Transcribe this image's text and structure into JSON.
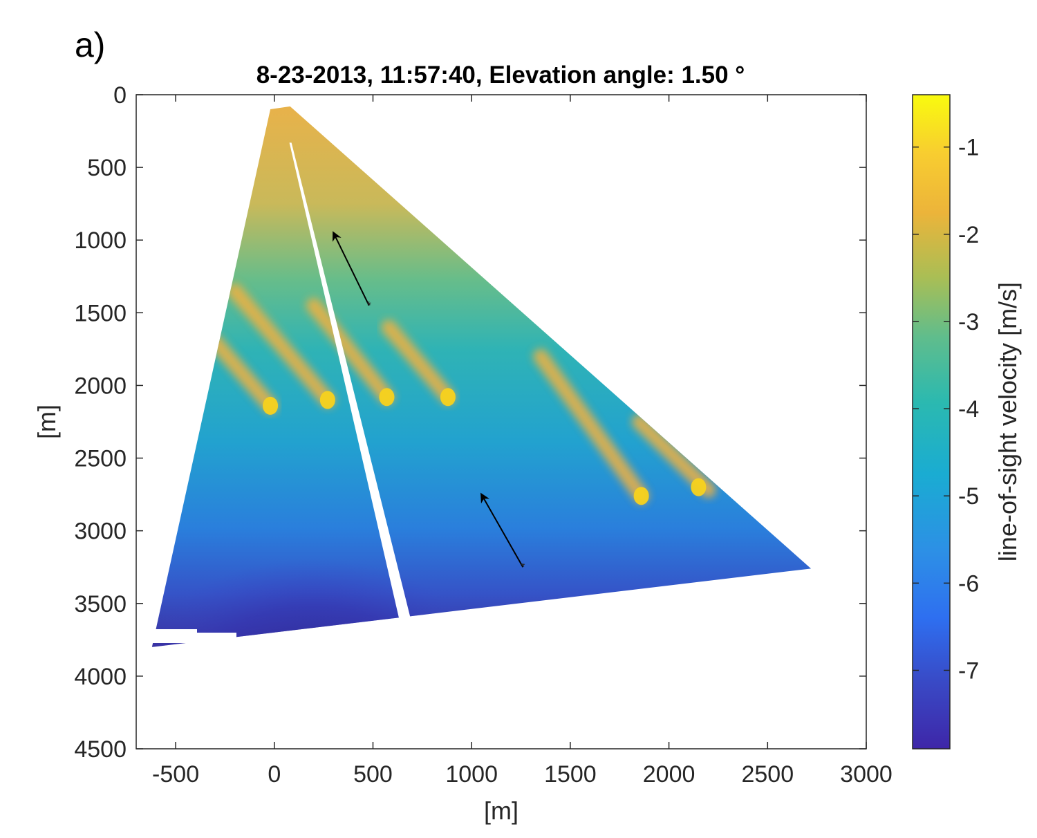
{
  "panel_label": "a)",
  "chart_data": {
    "type": "heatmap",
    "title": "8-23-2013, 11:57:40, Elevation angle: 1.50 °",
    "xlabel": "[m]",
    "ylabel": "[m]",
    "xlim": [
      -700,
      3000
    ],
    "ylim": [
      0,
      4500
    ],
    "y_reversed": true,
    "xticks": [
      -500,
      0,
      500,
      1000,
      1500,
      2000,
      2500,
      3000
    ],
    "xtick_labels": [
      "-500",
      "0",
      "500",
      "1000",
      "1500",
      "2000",
      "2500",
      "3000"
    ],
    "yticks": [
      0,
      500,
      1000,
      1500,
      2000,
      2500,
      3000,
      3500,
      4000,
      4500
    ],
    "ytick_labels": [
      "0",
      "500",
      "1000",
      "1500",
      "2000",
      "2500",
      "3000",
      "3500",
      "4000",
      "4500"
    ],
    "colorbar": {
      "label": "line-of-sight velocity [m/s]",
      "range": [
        -7.9,
        -0.4
      ],
      "ticks": [
        -1,
        -2,
        -3,
        -4,
        -5,
        -6,
        -7
      ],
      "tick_labels": [
        "-1",
        "-2",
        "-3",
        "-4",
        "-5",
        "-6",
        "-7"
      ],
      "colormap": [
        "#3e26a8",
        "#2e87f7",
        "#18b1c8",
        "#3bbc97",
        "#a8be52",
        "#f3b33e",
        "#f8e21b",
        "#f9fb0e"
      ]
    },
    "scan_sector": {
      "apex": [
        0,
        100
      ],
      "polygon": [
        [
          -20,
          100
        ],
        [
          80,
          80
        ],
        [
          2720,
          3260
        ],
        [
          -620,
          3800
        ]
      ],
      "gap_line": [
        [
          80,
          330
        ],
        [
          760,
          4150
        ]
      ]
    },
    "wind_arrows": [
      {
        "from": [
          480,
          1450
        ],
        "to": [
          300,
          950
        ]
      },
      {
        "from": [
          1260,
          3250
        ],
        "to": [
          1050,
          2750
        ]
      }
    ],
    "high_velocity_streaks": [
      {
        "from": [
          -300,
          1700
        ],
        "to": [
          -20,
          2140
        ],
        "peak_at": [
          -20,
          2140
        ]
      },
      {
        "from": [
          -200,
          1350
        ],
        "to": [
          270,
          2100
        ],
        "peak_at": [
          270,
          2100
        ]
      },
      {
        "from": [
          200,
          1450
        ],
        "to": [
          570,
          2080
        ],
        "peak_at": [
          570,
          2080
        ]
      },
      {
        "from": [
          580,
          1600
        ],
        "to": [
          880,
          2080
        ],
        "peak_at": [
          880,
          2080
        ]
      },
      {
        "from": [
          1350,
          1800
        ],
        "to": [
          1860,
          2760
        ],
        "peak_at": [
          1860,
          2760
        ]
      },
      {
        "from": [
          1850,
          2250
        ],
        "to": [
          2200,
          2720
        ],
        "peak_at": [
          2150,
          2700
        ]
      }
    ]
  }
}
